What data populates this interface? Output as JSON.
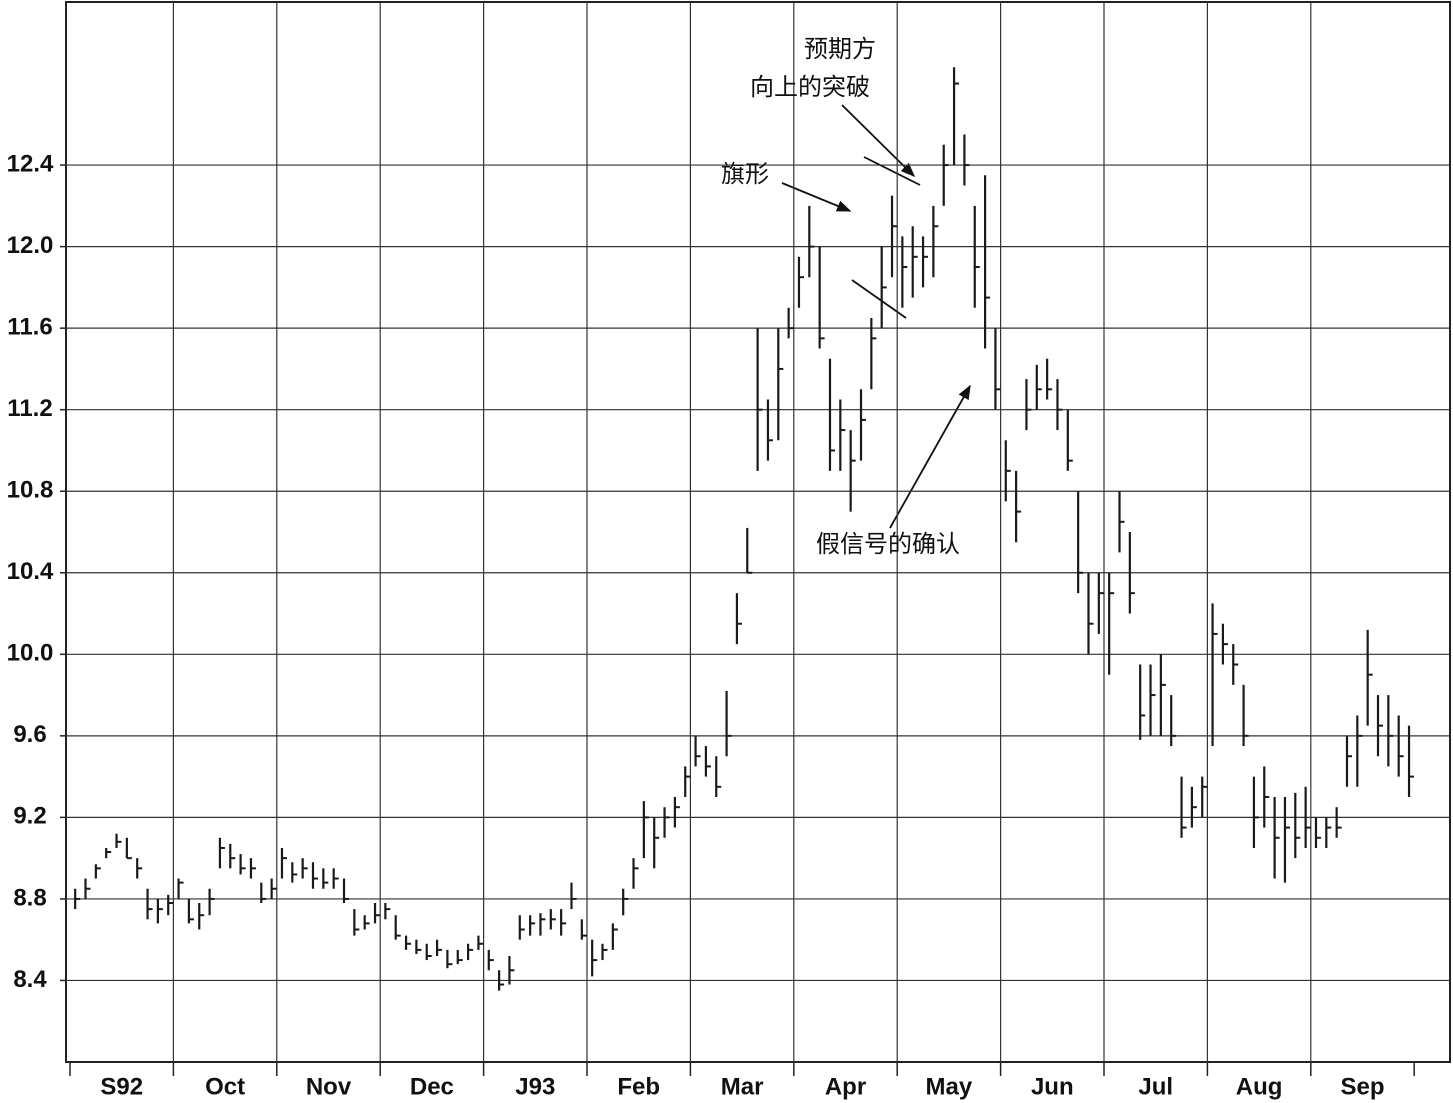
{
  "chart_data": {
    "type": "ohlc",
    "x_labels": [
      "S92",
      "Oct",
      "Nov",
      "Dec",
      "J93",
      "Feb",
      "Mar",
      "Apr",
      "May",
      "Jun",
      "Jul",
      "Aug",
      "Sep"
    ],
    "ylim": [
      8.0,
      13.2
    ],
    "yticks": [
      8.4,
      8.8,
      9.2,
      9.6,
      {
        "value": 10,
        "label": "10.0"
      },
      10.4,
      10.8,
      11.2,
      11.6,
      {
        "value": 12,
        "label": "12.0"
      },
      12.4
    ],
    "grid": true,
    "color": "#1a1a1a",
    "high": [
      8.85,
      8.9,
      8.97,
      9.05,
      9.12,
      9.1,
      9.0,
      8.85,
      8.8,
      8.82,
      8.9,
      8.8,
      8.78,
      8.85,
      9.1,
      9.07,
      9.02,
      9.0,
      8.88,
      8.9,
      9.05,
      8.98,
      9.0,
      8.98,
      8.95,
      8.95,
      8.9,
      8.75,
      8.72,
      8.78,
      8.78,
      8.72,
      8.62,
      8.6,
      8.58,
      8.6,
      8.55,
      8.55,
      8.58,
      8.62,
      8.55,
      8.45,
      8.52,
      8.72,
      8.72,
      8.73,
      8.75,
      8.75,
      8.88,
      8.7,
      8.6,
      8.58,
      8.68,
      8.85,
      9.0,
      9.28,
      9.2,
      9.25,
      9.3,
      9.45,
      9.6,
      9.55,
      9.5,
      9.82,
      10.3,
      10.62,
      11.6,
      11.25,
      11.6,
      11.7,
      11.95,
      12.2,
      12.0,
      11.45,
      11.25,
      11.1,
      11.3,
      11.65,
      12.0,
      12.25,
      12.05,
      12.1,
      12.05,
      12.2,
      12.5,
      12.88,
      12.55,
      12.2,
      12.35,
      11.6,
      11.05,
      10.9,
      11.35,
      11.42,
      11.45,
      11.35,
      11.2,
      10.8,
      10.4,
      10.4,
      10.4,
      10.8,
      10.6,
      9.95,
      9.95,
      10.0,
      9.8,
      9.4,
      9.35,
      9.4,
      10.25,
      10.15,
      10.05,
      9.85,
      9.4,
      9.45,
      9.3,
      9.3,
      9.32,
      9.35,
      9.2,
      9.2,
      9.25,
      9.6,
      9.7,
      10.12,
      9.8,
      9.8,
      9.7,
      9.65
    ],
    "low": [
      8.75,
      8.8,
      8.9,
      9.0,
      9.05,
      9.0,
      8.9,
      8.7,
      8.68,
      8.72,
      8.8,
      8.68,
      8.65,
      8.72,
      8.95,
      8.95,
      8.92,
      8.9,
      8.78,
      8.8,
      8.9,
      8.88,
      8.9,
      8.85,
      8.85,
      8.85,
      8.78,
      8.62,
      8.65,
      8.68,
      8.7,
      8.6,
      8.55,
      8.53,
      8.5,
      8.52,
      8.46,
      8.48,
      8.5,
      8.55,
      8.45,
      8.35,
      8.38,
      8.6,
      8.62,
      8.62,
      8.65,
      8.62,
      8.75,
      8.6,
      8.42,
      8.5,
      8.55,
      8.72,
      8.85,
      9.0,
      8.95,
      9.1,
      9.15,
      9.3,
      9.45,
      9.4,
      9.3,
      9.5,
      10.05,
      10.4,
      10.9,
      10.95,
      11.05,
      11.55,
      11.7,
      11.85,
      11.5,
      10.9,
      10.9,
      10.7,
      10.95,
      11.3,
      11.6,
      11.85,
      11.7,
      11.75,
      11.8,
      11.85,
      12.2,
      12.4,
      12.3,
      11.7,
      11.5,
      11.2,
      10.75,
      10.55,
      11.1,
      11.2,
      11.25,
      11.1,
      10.9,
      10.3,
      10.0,
      10.1,
      9.9,
      10.5,
      10.2,
      9.58,
      9.6,
      9.6,
      9.55,
      9.1,
      9.15,
      9.2,
      9.55,
      9.95,
      9.85,
      9.55,
      9.05,
      9.15,
      8.9,
      8.88,
      9.0,
      9.05,
      9.05,
      9.05,
      9.1,
      9.35,
      9.35,
      9.65,
      9.5,
      9.45,
      9.4,
      9.3
    ],
    "close": [
      8.8,
      8.85,
      8.95,
      9.03,
      9.08,
      9.0,
      8.95,
      8.75,
      8.75,
      8.78,
      8.88,
      8.7,
      8.72,
      8.8,
      9.05,
      9.0,
      8.95,
      8.95,
      8.8,
      8.85,
      9.0,
      8.92,
      8.95,
      8.9,
      8.88,
      8.9,
      8.8,
      8.65,
      8.68,
      8.72,
      8.75,
      8.62,
      8.58,
      8.55,
      8.52,
      8.55,
      8.48,
      8.5,
      8.55,
      8.58,
      8.5,
      8.38,
      8.45,
      8.65,
      8.68,
      8.7,
      8.7,
      8.68,
      8.8,
      8.62,
      8.5,
      8.55,
      8.65,
      8.8,
      8.95,
      9.2,
      9.1,
      9.2,
      9.25,
      9.4,
      9.5,
      9.45,
      9.35,
      9.6,
      10.15,
      10.4,
      11.2,
      11.05,
      11.4,
      11.6,
      11.85,
      12.0,
      11.55,
      11.0,
      11.1,
      10.95,
      11.15,
      11.55,
      11.8,
      12.1,
      11.9,
      11.95,
      11.95,
      12.1,
      12.4,
      12.8,
      12.4,
      11.9,
      11.75,
      11.3,
      10.9,
      10.7,
      11.2,
      11.3,
      11.3,
      11.2,
      10.95,
      10.4,
      10.15,
      10.3,
      10.3,
      10.65,
      10.3,
      9.7,
      9.8,
      9.85,
      9.6,
      9.15,
      9.25,
      9.35,
      10.1,
      10.05,
      9.95,
      9.6,
      9.2,
      9.3,
      9.1,
      9.15,
      9.1,
      9.15,
      9.1,
      9.15,
      9.15,
      9.5,
      9.6,
      9.9,
      9.65,
      9.6,
      9.5,
      9.4
    ],
    "annotations": [
      "预期方",
      "向上的突破",
      "旗形",
      "假信号的确认"
    ]
  }
}
